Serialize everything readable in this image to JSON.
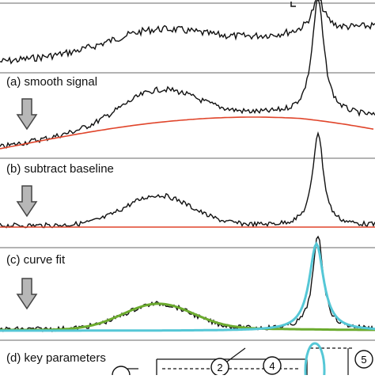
{
  "panels": {
    "a": {
      "label": "(a) smooth signal"
    },
    "b": {
      "label": "(b) subtract baseline"
    },
    "c": {
      "label": "(c) curve fit"
    },
    "d": {
      "label": "(d) key parameters"
    }
  },
  "callouts": [
    "2",
    "4",
    "5"
  ],
  "colors": {
    "signal": "#111111",
    "baseline": "#e0452b",
    "fit_broad": "#6cab2f",
    "fit_sharp": "#55c7d6",
    "arrow_fill": "#b7b7b7",
    "arrow_stroke": "#444444",
    "divider": "#9a9a9a"
  },
  "icons": {
    "step_arrow": "down-arrow-icon"
  }
}
